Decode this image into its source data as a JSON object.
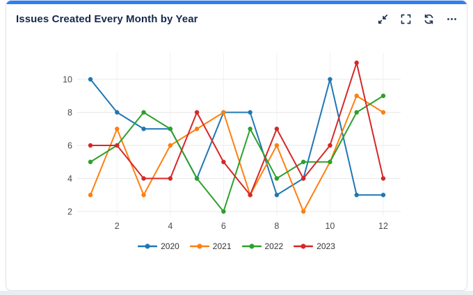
{
  "card": {
    "title": "Issues Created Every Month by Year",
    "accent_color": "#2e7ef7",
    "toolbar": {
      "icons": [
        "collapse",
        "fullscreen",
        "refresh",
        "more-options"
      ]
    }
  },
  "chart_data": {
    "type": "line",
    "title": "Issues Created Every Month by Year",
    "x": [
      1,
      2,
      3,
      4,
      5,
      6,
      7,
      8,
      9,
      10,
      11,
      12
    ],
    "xticks": [
      2,
      4,
      6,
      8,
      10,
      12
    ],
    "yticks": [
      2,
      4,
      6,
      8,
      10
    ],
    "xlim": [
      0.5,
      12.6
    ],
    "ylim": [
      1.7,
      11.6
    ],
    "grid": true,
    "legend_position": "bottom",
    "series": [
      {
        "name": "2020",
        "color": "#1f77b4",
        "values": [
          10,
          8,
          7,
          7,
          4,
          8,
          8,
          3,
          4,
          10,
          3,
          3
        ]
      },
      {
        "name": "2021",
        "color": "#ff7f0e",
        "values": [
          3,
          7,
          3,
          6,
          7,
          8,
          3,
          6,
          2,
          5,
          9,
          8
        ]
      },
      {
        "name": "2022",
        "color": "#2ca02c",
        "values": [
          5,
          6,
          8,
          7,
          4,
          2,
          7,
          4,
          5,
          5,
          8,
          9
        ]
      },
      {
        "name": "2023",
        "color": "#d62728",
        "values": [
          6,
          6,
          4,
          4,
          8,
          5,
          3,
          7,
          4,
          6,
          11,
          4
        ]
      }
    ],
    "colors": {
      "gridline_h": "#e9e9e9",
      "gridline_v": "#f0f0f0",
      "tick_label": "#4c4c4c"
    }
  }
}
